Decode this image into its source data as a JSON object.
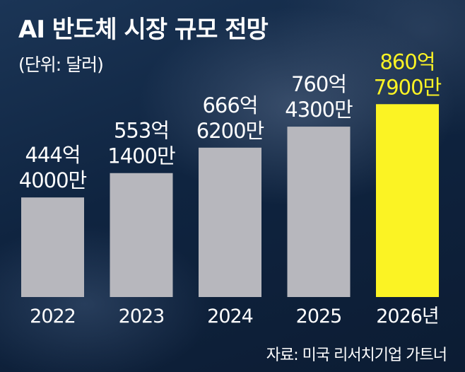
{
  "header": {
    "title": "AI 반도체 시장 규모 전망",
    "unit": "(단위: 달러)"
  },
  "footer": {
    "source": "자료: 미국 리서치기업 가트너"
  },
  "colors": {
    "bar": "#b7b7bd",
    "highlight_bar": "#fbf324",
    "label": "#ffffff",
    "highlight_label": "#fbf324"
  },
  "chart_data": {
    "type": "bar",
    "title": "AI 반도체 시장 규모 전망",
    "subtitle": "(단위: 달러)",
    "categories": [
      "2022",
      "2023",
      "2024",
      "2025",
      "2026년"
    ],
    "values": [
      44440000000,
      55314000000,
      66662000000,
      76043000000,
      86079000000
    ],
    "value_labels": [
      [
        "444억",
        "4000만"
      ],
      [
        "553억",
        "1400만"
      ],
      [
        "666억",
        "6200만"
      ],
      [
        "760억",
        "4300만"
      ],
      [
        "860억",
        "7900만"
      ]
    ],
    "highlight_index": 4,
    "ylim": [
      0,
      101000000000
    ],
    "grid": false,
    "legend": "none",
    "source": "자료: 미국 리서치기업 가트너"
  }
}
